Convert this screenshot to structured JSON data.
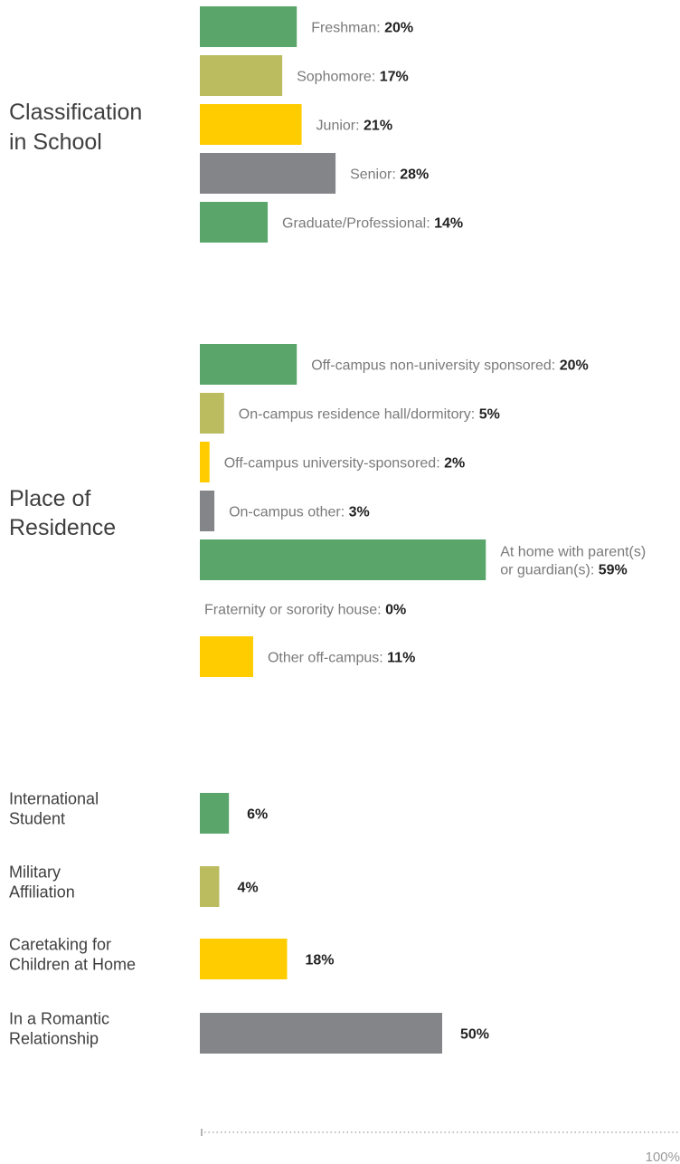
{
  "chart_data": [
    {
      "type": "bar",
      "orientation": "horizontal",
      "group_label": [
        "Classification",
        "in School"
      ],
      "categories": [
        "Freshman",
        "Sophomore",
        "Junior",
        "Senior",
        "Graduate/Professional"
      ],
      "values": [
        20,
        17,
        21,
        28,
        14
      ],
      "unit": "%",
      "colors": [
        "#5aa56a",
        "#bbbb5f",
        "#ffcc00",
        "#848589",
        "#5aa56a"
      ],
      "xlim": [
        0,
        100
      ]
    },
    {
      "type": "bar",
      "orientation": "horizontal",
      "group_label": [
        "Place of",
        "Residence"
      ],
      "categories": [
        "Off-campus non-university sponsored",
        "On-campus residence hall/dormitory",
        "Off-campus university-sponsored",
        "On-campus other",
        "At home with parent(s) or guardian(s)",
        "Fraternity or sorority house",
        "Other off-campus"
      ],
      "category_lines": [
        [
          "Off-campus non-university sponsored"
        ],
        [
          "On-campus residence hall/dormitory"
        ],
        [
          "Off-campus university-sponsored"
        ],
        [
          "On-campus other"
        ],
        [
          "At home with parent(s)",
          "or guardian(s)"
        ],
        [
          "Fraternity or sorority house"
        ],
        [
          "Other off-campus"
        ]
      ],
      "values": [
        20,
        5,
        2,
        3,
        59,
        0,
        11
      ],
      "unit": "%",
      "colors": [
        "#5aa56a",
        "#bbbb5f",
        "#ffcc00",
        "#848589",
        "#5aa56a",
        "#bbbb5f",
        "#ffcc00"
      ],
      "xlim": [
        0,
        100
      ]
    },
    {
      "type": "bar",
      "orientation": "horizontal",
      "categories": [
        "International Student",
        "Military Affiliation",
        "Caretaking for Children at Home",
        "In a Romantic Relationship"
      ],
      "category_lines": [
        [
          "International",
          "Student"
        ],
        [
          "Military",
          "Affiliation"
        ],
        [
          "Caretaking for",
          "Children at Home"
        ],
        [
          "In a Romantic",
          "Relationship"
        ]
      ],
      "values": [
        6,
        4,
        18,
        50
      ],
      "unit": "%",
      "colors": [
        "#5aa56a",
        "#bbbb5f",
        "#ffcc00",
        "#848589"
      ],
      "xlim": [
        0,
        100
      ]
    }
  ],
  "axis": {
    "max_label": "100%"
  }
}
